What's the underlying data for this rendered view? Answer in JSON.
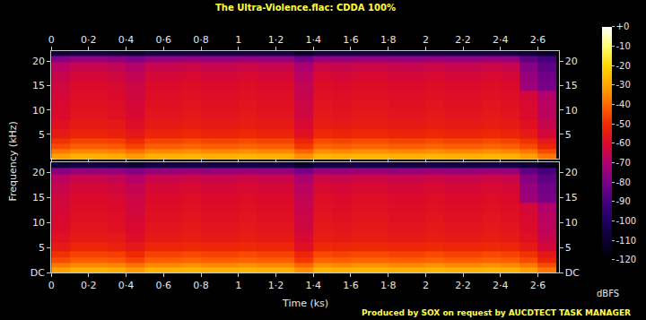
{
  "chart_data": {
    "type": "heatmap",
    "title": "The Ultra-Violence.flac: CDDA 100%",
    "x_label": "Time (ks)",
    "y_label": "Frequency (kHz)",
    "footer": "Produced by SOX on request by AUCDTECT TASK MANAGER",
    "xlim": [
      0,
      2.71
    ],
    "ylim": [
      0,
      22.05
    ],
    "xticks": [
      0,
      {
        "value": 0.2,
        "label": "0·2"
      },
      {
        "value": 0.4,
        "label": "0·4"
      },
      {
        "value": 0.6,
        "label": "0·6"
      },
      {
        "value": 0.8,
        "label": "0·8"
      },
      1,
      {
        "value": 1.2,
        "label": "1·2"
      },
      {
        "value": 1.4,
        "label": "1·4"
      },
      {
        "value": 1.6,
        "label": "1·6"
      },
      {
        "value": 1.8,
        "label": "1·8"
      },
      2,
      {
        "value": 2.2,
        "label": "2·2"
      },
      {
        "value": 2.4,
        "label": "2·4"
      },
      {
        "value": 2.6,
        "label": "2·6"
      }
    ],
    "x": [
      0.05,
      0.15,
      0.25,
      0.35,
      0.45,
      0.55,
      0.65,
      0.75,
      0.85,
      0.95,
      1.05,
      1.15,
      1.25,
      1.35,
      1.45,
      1.55,
      1.65,
      1.75,
      1.85,
      1.95,
      2.05,
      2.15,
      2.25,
      2.35,
      2.45,
      2.55,
      2.65
    ],
    "y": [
      0.5,
      1.5,
      2.5,
      3.5,
      5,
      7,
      9,
      11,
      13,
      15,
      17,
      19,
      20.5,
      21.5
    ],
    "colorbar": {
      "title": "dBFS",
      "range": [
        -120,
        0
      ],
      "ticks": [
        {
          "value": 0,
          "label": "+0"
        },
        -10,
        -20,
        -30,
        -40,
        -50,
        -60,
        -70,
        -80,
        -90,
        -100,
        -110,
        -120
      ]
    },
    "panels": [
      {
        "yticks": [
          5,
          10,
          15,
          20
        ],
        "z": [
          [
            -31,
            -28,
            -28,
            -29,
            -32,
            -28,
            -28,
            -27,
            -28,
            -28,
            -27,
            -28,
            -28,
            -34,
            -27,
            -28,
            -27,
            -27,
            -28,
            -28,
            -27,
            -28,
            -28,
            -27,
            -28,
            -31,
            -38
          ],
          [
            -38,
            -35,
            -35,
            -36,
            -39,
            -35,
            -35,
            -34,
            -35,
            -35,
            -34,
            -35,
            -35,
            -41,
            -34,
            -35,
            -34,
            -34,
            -35,
            -35,
            -34,
            -35,
            -35,
            -34,
            -35,
            -38,
            -45
          ],
          [
            -45,
            -42,
            -42,
            -43,
            -46,
            -42,
            -42,
            -41,
            -42,
            -42,
            -41,
            -42,
            -42,
            -48,
            -41,
            -42,
            -41,
            -41,
            -42,
            -42,
            -41,
            -42,
            -42,
            -41,
            -42,
            -45,
            -52
          ],
          [
            -49,
            -46,
            -46,
            -47,
            -50,
            -46,
            -46,
            -45,
            -46,
            -46,
            -45,
            -46,
            -46,
            -52,
            -45,
            -46,
            -45,
            -45,
            -46,
            -46,
            -45,
            -46,
            -46,
            -45,
            -46,
            -49,
            -56
          ],
          [
            -55,
            -52,
            -52,
            -53,
            -56,
            -52,
            -52,
            -51,
            -52,
            -52,
            -51,
            -52,
            -52,
            -58,
            -51,
            -52,
            -51,
            -51,
            -52,
            -52,
            -51,
            -52,
            -52,
            -51,
            -52,
            -55,
            -62
          ],
          [
            -58,
            -55,
            -55,
            -56,
            -59,
            -55,
            -55,
            -54,
            -55,
            -55,
            -54,
            -55,
            -55,
            -61,
            -54,
            -55,
            -54,
            -54,
            -55,
            -55,
            -54,
            -55,
            -55,
            -54,
            -55,
            -58,
            -65
          ],
          [
            -60,
            -57,
            -57,
            -58,
            -61,
            -57,
            -57,
            -56,
            -57,
            -57,
            -56,
            -57,
            -57,
            -63,
            -56,
            -57,
            -56,
            -56,
            -57,
            -57,
            -56,
            -57,
            -57,
            -56,
            -57,
            -60,
            -67
          ],
          [
            -61,
            -58,
            -58,
            -59,
            -62,
            -58,
            -58,
            -57,
            -58,
            -58,
            -57,
            -58,
            -58,
            -64,
            -57,
            -58,
            -57,
            -57,
            -58,
            -58,
            -57,
            -58,
            -58,
            -57,
            -58,
            -61,
            -68
          ],
          [
            -62,
            -59,
            -59,
            -60,
            -63,
            -59,
            -59,
            -58,
            -59,
            -59,
            -58,
            -59,
            -59,
            -65,
            -58,
            -59,
            -58,
            -58,
            -59,
            -59,
            -58,
            -59,
            -59,
            -58,
            -59,
            -62,
            -69
          ],
          [
            -63,
            -60,
            -60,
            -61,
            -64,
            -60,
            -60,
            -59,
            -60,
            -60,
            -59,
            -60,
            -60,
            -66,
            -59,
            -60,
            -59,
            -59,
            -60,
            -60,
            -59,
            -60,
            -60,
            -59,
            -60,
            -73,
            -80
          ],
          [
            -65,
            -62,
            -62,
            -63,
            -66,
            -62,
            -62,
            -61,
            -62,
            -62,
            -61,
            -62,
            -62,
            -68,
            -61,
            -62,
            -61,
            -61,
            -62,
            -62,
            -61,
            -62,
            -62,
            -61,
            -62,
            -75,
            -82
          ],
          [
            -68,
            -65,
            -65,
            -66,
            -69,
            -65,
            -65,
            -64,
            -65,
            -65,
            -64,
            -65,
            -65,
            -71,
            -64,
            -65,
            -64,
            -64,
            -65,
            -65,
            -64,
            -65,
            -65,
            -64,
            -65,
            -78,
            -85
          ],
          [
            -78,
            -75,
            -75,
            -76,
            -79,
            -75,
            -75,
            -74,
            -75,
            -75,
            -74,
            -75,
            -75,
            -81,
            -74,
            -75,
            -74,
            -74,
            -75,
            -75,
            -74,
            -75,
            -75,
            -74,
            -75,
            -85,
            -90
          ],
          [
            -108,
            -105,
            -105,
            -106,
            -109,
            -105,
            -105,
            -104,
            -105,
            -105,
            -104,
            -105,
            -105,
            -111,
            -104,
            -105,
            -104,
            -104,
            -105,
            -105,
            -104,
            -105,
            -105,
            -104,
            -105,
            -108,
            -112
          ]
        ]
      },
      {
        "yticks": [
          {
            "value": 0,
            "label": "DC"
          },
          5,
          10,
          15,
          20
        ],
        "z": [
          [
            -31,
            -28,
            -28,
            -29,
            -32,
            -28,
            -28,
            -27,
            -28,
            -28,
            -27,
            -28,
            -28,
            -34,
            -27,
            -28,
            -27,
            -27,
            -28,
            -28,
            -27,
            -28,
            -28,
            -27,
            -28,
            -31,
            -38
          ],
          [
            -38,
            -35,
            -35,
            -36,
            -39,
            -35,
            -35,
            -34,
            -35,
            -35,
            -34,
            -35,
            -35,
            -41,
            -34,
            -35,
            -34,
            -34,
            -35,
            -35,
            -34,
            -35,
            -35,
            -34,
            -35,
            -38,
            -45
          ],
          [
            -45,
            -42,
            -42,
            -43,
            -46,
            -42,
            -42,
            -41,
            -42,
            -42,
            -41,
            -42,
            -42,
            -48,
            -41,
            -42,
            -41,
            -41,
            -42,
            -42,
            -41,
            -42,
            -42,
            -41,
            -42,
            -45,
            -52
          ],
          [
            -49,
            -46,
            -46,
            -47,
            -50,
            -46,
            -46,
            -45,
            -46,
            -46,
            -45,
            -46,
            -46,
            -52,
            -45,
            -46,
            -45,
            -45,
            -46,
            -46,
            -45,
            -46,
            -46,
            -45,
            -46,
            -49,
            -56
          ],
          [
            -55,
            -52,
            -52,
            -53,
            -56,
            -52,
            -52,
            -51,
            -52,
            -52,
            -51,
            -52,
            -52,
            -58,
            -51,
            -52,
            -51,
            -51,
            -52,
            -52,
            -51,
            -52,
            -52,
            -51,
            -52,
            -55,
            -62
          ],
          [
            -58,
            -55,
            -55,
            -56,
            -59,
            -55,
            -55,
            -54,
            -55,
            -55,
            -54,
            -55,
            -55,
            -61,
            -54,
            -55,
            -54,
            -54,
            -55,
            -55,
            -54,
            -55,
            -55,
            -54,
            -55,
            -58,
            -65
          ],
          [
            -60,
            -57,
            -57,
            -58,
            -61,
            -57,
            -57,
            -56,
            -57,
            -57,
            -56,
            -57,
            -57,
            -63,
            -56,
            -57,
            -56,
            -56,
            -57,
            -57,
            -56,
            -57,
            -57,
            -56,
            -57,
            -60,
            -67
          ],
          [
            -61,
            -58,
            -58,
            -59,
            -62,
            -58,
            -58,
            -57,
            -58,
            -58,
            -57,
            -58,
            -58,
            -64,
            -57,
            -58,
            -57,
            -57,
            -58,
            -58,
            -57,
            -58,
            -58,
            -57,
            -58,
            -61,
            -68
          ],
          [
            -62,
            -59,
            -59,
            -60,
            -63,
            -59,
            -59,
            -58,
            -59,
            -59,
            -58,
            -59,
            -59,
            -65,
            -58,
            -59,
            -58,
            -58,
            -59,
            -59,
            -58,
            -59,
            -59,
            -58,
            -59,
            -62,
            -69
          ],
          [
            -63,
            -60,
            -60,
            -61,
            -64,
            -60,
            -60,
            -59,
            -60,
            -60,
            -59,
            -60,
            -60,
            -66,
            -59,
            -60,
            -59,
            -59,
            -60,
            -60,
            -59,
            -60,
            -60,
            -59,
            -60,
            -73,
            -80
          ],
          [
            -65,
            -62,
            -62,
            -63,
            -66,
            -62,
            -62,
            -61,
            -62,
            -62,
            -61,
            -62,
            -62,
            -68,
            -61,
            -62,
            -61,
            -61,
            -62,
            -62,
            -61,
            -62,
            -62,
            -61,
            -62,
            -75,
            -82
          ],
          [
            -68,
            -65,
            -65,
            -66,
            -69,
            -65,
            -65,
            -64,
            -65,
            -65,
            -64,
            -65,
            -65,
            -71,
            -64,
            -65,
            -64,
            -64,
            -65,
            -65,
            -64,
            -65,
            -65,
            -64,
            -65,
            -78,
            -85
          ],
          [
            -78,
            -75,
            -75,
            -76,
            -79,
            -75,
            -75,
            -74,
            -75,
            -75,
            -74,
            -75,
            -75,
            -81,
            -74,
            -75,
            -74,
            -74,
            -75,
            -75,
            -74,
            -75,
            -75,
            -74,
            -75,
            -85,
            -90
          ],
          [
            -108,
            -105,
            -105,
            -106,
            -109,
            -105,
            -105,
            -104,
            -105,
            -105,
            -104,
            -105,
            -105,
            -111,
            -104,
            -105,
            -104,
            -104,
            -105,
            -105,
            -104,
            -105,
            -105,
            -104,
            -105,
            -108,
            -112
          ]
        ]
      }
    ]
  }
}
